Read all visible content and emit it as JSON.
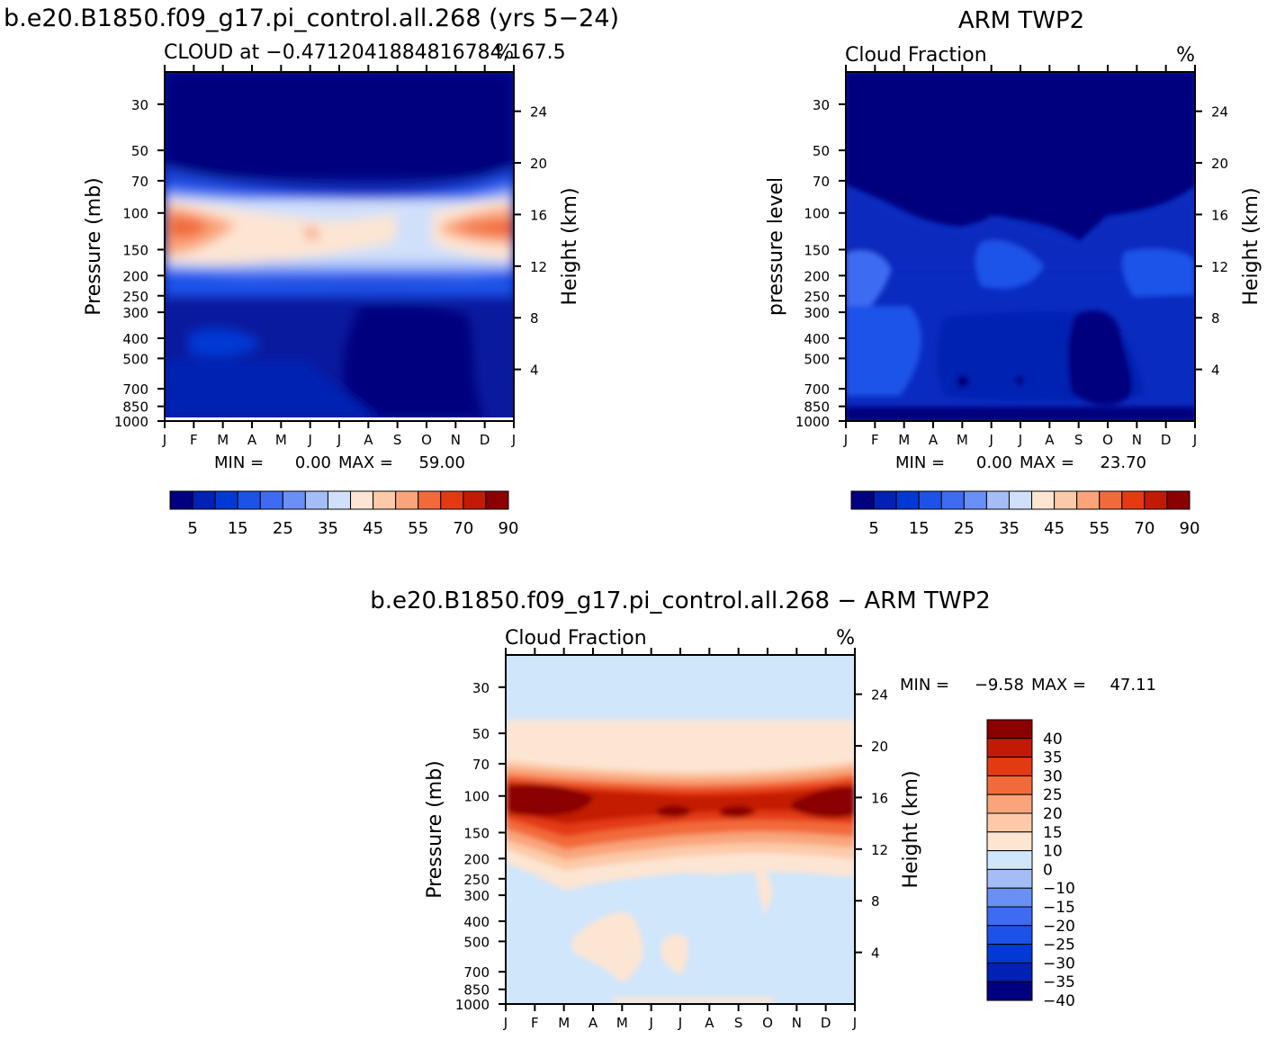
{
  "page": {
    "top_left_title": "b.e20.B1850.f09_g17.pi_control.all.268 (yrs 5−24)",
    "top_right_title": "ARM TWP2",
    "bottom_title": "b.e20.B1850.f09_g17.pi_control.all.268 − ARM TWP2"
  },
  "colors": {
    "abs_scale": [
      "#000080",
      "#0021b3",
      "#0039d4",
      "#1c52e8",
      "#3d6cf2",
      "#6a8ff5",
      "#a4bdf7",
      "#d0e0fb",
      "#fde5d3",
      "#fccaa8",
      "#f9a47a",
      "#f26a3b",
      "#e43a12",
      "#c31a05",
      "#8b0000"
    ],
    "diff_scale": [
      "#000080",
      "#0021b3",
      "#0039d4",
      "#1c52e8",
      "#3d6cf2",
      "#6a8ff5",
      "#a4bdf7",
      "#d0e6fb",
      "#fde5d3",
      "#fccaa8",
      "#f9a47a",
      "#f26a3b",
      "#e43a12",
      "#c31a05",
      "#8b0000"
    ]
  },
  "chart_data": [
    {
      "type": "heatmap",
      "title": "CLOUD at −0.47120418848167 84,167.5",
      "subtitle_left": "CLOUD at −0.4712041884816784,167.5",
      "units": "%",
      "xlabel": "",
      "ylabel": "Pressure (mb)",
      "ylabel_right": "Height (km)",
      "x_months": [
        "J",
        "F",
        "M",
        "A",
        "M",
        "J",
        "J",
        "A",
        "S",
        "O",
        "N",
        "D",
        "J"
      ],
      "y_pressure_ticks": [
        "30",
        "50",
        "70",
        "100",
        "150",
        "200",
        "250",
        "300",
        "400",
        "500",
        "700",
        "850",
        "1000"
      ],
      "y_height_ticks": [
        "24",
        "20",
        "16",
        "12",
        "8",
        "4"
      ],
      "levels": [
        5,
        10,
        15,
        20,
        25,
        30,
        35,
        40,
        45,
        50,
        55,
        60,
        70,
        80,
        90
      ],
      "colorbar_labels": [
        "5",
        "15",
        "25",
        "35",
        "45",
        "55",
        "70",
        "90"
      ],
      "min_label": "MIN =",
      "min_value": "0.00",
      "max_label": "MAX =",
      "max_value": "59.00",
      "stats": {
        "min": 0.0,
        "max": 59.0
      }
    },
    {
      "type": "heatmap",
      "title": "ARM TWP2",
      "subtitle_left": "Cloud Fraction",
      "units": "%",
      "ylabel": "pressure level",
      "ylabel_right": "Height (km)",
      "x_months": [
        "J",
        "F",
        "M",
        "A",
        "M",
        "J",
        "J",
        "A",
        "S",
        "O",
        "N",
        "D",
        "J"
      ],
      "y_pressure_ticks": [
        "30",
        "50",
        "70",
        "100",
        "150",
        "200",
        "250",
        "300",
        "400",
        "500",
        "700",
        "850",
        "1000"
      ],
      "y_height_ticks": [
        "24",
        "20",
        "16",
        "12",
        "8",
        "4"
      ],
      "levels": [
        5,
        10,
        15,
        20,
        25,
        30,
        35,
        40,
        45,
        50,
        55,
        60,
        70,
        80,
        90
      ],
      "colorbar_labels": [
        "5",
        "15",
        "25",
        "35",
        "45",
        "55",
        "70",
        "90"
      ],
      "min_label": "MIN =",
      "min_value": "0.00",
      "max_label": "MAX =",
      "max_value": "23.70",
      "stats": {
        "min": 0.0,
        "max": 23.7
      }
    },
    {
      "type": "heatmap",
      "title": "b.e20.B1850.f09_g17.pi_control.all.268 − ARM TWP2",
      "subtitle_left": "Cloud Fraction",
      "units": "%",
      "ylabel": "Pressure (mb)",
      "ylabel_right": "Height (km)",
      "x_months": [
        "J",
        "F",
        "M",
        "A",
        "M",
        "J",
        "J",
        "A",
        "S",
        "O",
        "N",
        "D",
        "J"
      ],
      "y_pressure_ticks": [
        "30",
        "50",
        "70",
        "100",
        "150",
        "200",
        "250",
        "300",
        "400",
        "500",
        "700",
        "850",
        "1000"
      ],
      "y_height_ticks": [
        "24",
        "20",
        "16",
        "12",
        "8",
        "4"
      ],
      "levels": [
        -40,
        -35,
        -30,
        -25,
        -20,
        -15,
        -10,
        0,
        10,
        15,
        20,
        25,
        30,
        35,
        40
      ],
      "colorbar_labels": [
        "40",
        "35",
        "30",
        "25",
        "20",
        "15",
        "10",
        "0",
        "−10",
        "−15",
        "−20",
        "−25",
        "−30",
        "−35",
        "−40"
      ],
      "min_label": "MIN =",
      "min_value": "−9.58",
      "max_label": "MAX =",
      "max_value": "47.11",
      "stats": {
        "min": -9.58,
        "max": 47.11
      }
    }
  ]
}
